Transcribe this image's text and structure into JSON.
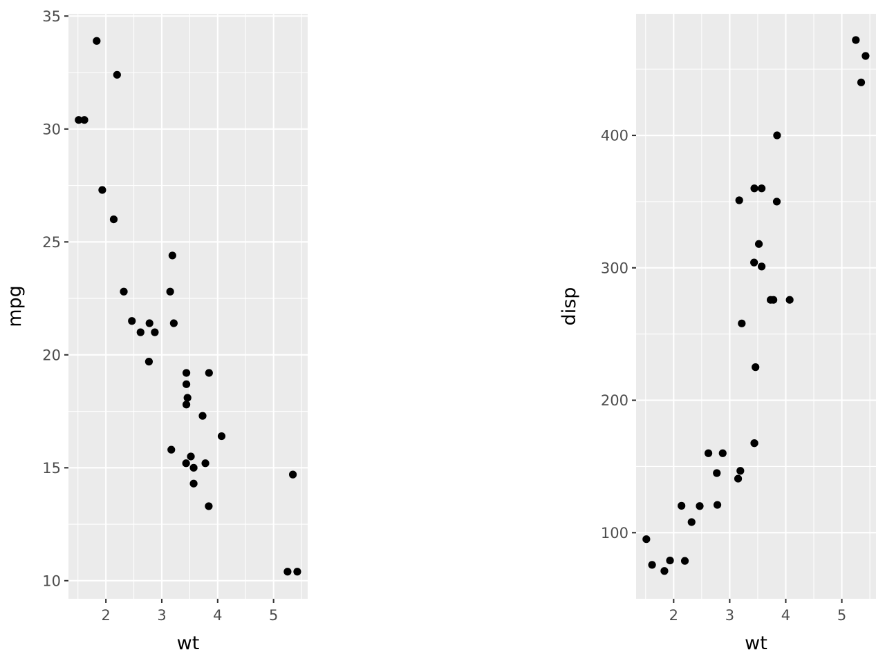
{
  "chart_data": [
    {
      "type": "scatter",
      "xlabel": "wt",
      "ylabel": "mpg",
      "xlim": [
        1.33,
        5.61
      ],
      "ylim": [
        9.2,
        35.1
      ],
      "x_ticks": [
        2,
        3,
        4,
        5
      ],
      "x_tick_labels": [
        "2",
        "3",
        "4",
        "5"
      ],
      "x_minor": [
        1.5,
        2.5,
        3.5,
        4.5,
        5.5
      ],
      "y_ticks": [
        10,
        15,
        20,
        25,
        30,
        35
      ],
      "y_tick_labels": [
        "10",
        "15",
        "20",
        "25",
        "30",
        "35"
      ],
      "y_minor": [
        12.5,
        17.5,
        22.5,
        27.5,
        32.5
      ],
      "grid": true,
      "points": [
        {
          "x": 2.62,
          "y": 21.0
        },
        {
          "x": 2.875,
          "y": 21.0
        },
        {
          "x": 2.32,
          "y": 22.8
        },
        {
          "x": 3.215,
          "y": 21.4
        },
        {
          "x": 3.44,
          "y": 18.7
        },
        {
          "x": 3.46,
          "y": 18.1
        },
        {
          "x": 3.57,
          "y": 14.3
        },
        {
          "x": 3.19,
          "y": 24.4
        },
        {
          "x": 3.15,
          "y": 22.8
        },
        {
          "x": 3.44,
          "y": 19.2
        },
        {
          "x": 3.44,
          "y": 17.8
        },
        {
          "x": 4.07,
          "y": 16.4
        },
        {
          "x": 3.73,
          "y": 17.3
        },
        {
          "x": 3.78,
          "y": 15.2
        },
        {
          "x": 5.25,
          "y": 10.4
        },
        {
          "x": 5.424,
          "y": 10.4
        },
        {
          "x": 5.345,
          "y": 14.7
        },
        {
          "x": 2.2,
          "y": 32.4
        },
        {
          "x": 1.615,
          "y": 30.4
        },
        {
          "x": 1.835,
          "y": 33.9
        },
        {
          "x": 2.465,
          "y": 21.5
        },
        {
          "x": 3.52,
          "y": 15.5
        },
        {
          "x": 3.435,
          "y": 15.2
        },
        {
          "x": 3.84,
          "y": 13.3
        },
        {
          "x": 3.845,
          "y": 19.2
        },
        {
          "x": 1.935,
          "y": 27.3
        },
        {
          "x": 2.14,
          "y": 26.0
        },
        {
          "x": 1.513,
          "y": 30.4
        },
        {
          "x": 3.17,
          "y": 15.8
        },
        {
          "x": 2.77,
          "y": 19.7
        },
        {
          "x": 3.57,
          "y": 15.0
        },
        {
          "x": 2.78,
          "y": 21.4
        }
      ]
    },
    {
      "type": "scatter",
      "xlabel": "wt",
      "ylabel": "disp",
      "xlim": [
        1.33,
        5.61
      ],
      "ylim": [
        50.1,
        491.8
      ],
      "x_ticks": [
        2,
        3,
        4,
        5
      ],
      "x_tick_labels": [
        "2",
        "3",
        "4",
        "5"
      ],
      "x_minor": [
        1.5,
        2.5,
        3.5,
        4.5,
        5.5
      ],
      "y_ticks": [
        100,
        200,
        300,
        400
      ],
      "y_tick_labels": [
        "100",
        "200",
        "300",
        "400"
      ],
      "y_minor": [
        50,
        150,
        250,
        350,
        450
      ],
      "grid": true,
      "points": [
        {
          "x": 2.62,
          "y": 160
        },
        {
          "x": 2.875,
          "y": 160
        },
        {
          "x": 2.32,
          "y": 108
        },
        {
          "x": 3.215,
          "y": 258
        },
        {
          "x": 3.44,
          "y": 360
        },
        {
          "x": 3.46,
          "y": 225
        },
        {
          "x": 3.57,
          "y": 360
        },
        {
          "x": 3.19,
          "y": 146.7
        },
        {
          "x": 3.15,
          "y": 140.8
        },
        {
          "x": 3.44,
          "y": 167.6
        },
        {
          "x": 3.44,
          "y": 167.6
        },
        {
          "x": 4.07,
          "y": 275.8
        },
        {
          "x": 3.73,
          "y": 275.8
        },
        {
          "x": 3.78,
          "y": 275.8
        },
        {
          "x": 5.25,
          "y": 472
        },
        {
          "x": 5.424,
          "y": 460
        },
        {
          "x": 5.345,
          "y": 440
        },
        {
          "x": 2.2,
          "y": 78.7
        },
        {
          "x": 1.615,
          "y": 75.7
        },
        {
          "x": 1.835,
          "y": 71.1
        },
        {
          "x": 2.465,
          "y": 120.1
        },
        {
          "x": 3.52,
          "y": 318
        },
        {
          "x": 3.435,
          "y": 304
        },
        {
          "x": 3.84,
          "y": 350
        },
        {
          "x": 3.845,
          "y": 400
        },
        {
          "x": 1.935,
          "y": 79
        },
        {
          "x": 2.14,
          "y": 120.3
        },
        {
          "x": 1.513,
          "y": 95.1
        },
        {
          "x": 3.17,
          "y": 351
        },
        {
          "x": 2.77,
          "y": 145
        },
        {
          "x": 3.57,
          "y": 301
        },
        {
          "x": 2.78,
          "y": 121
        }
      ]
    }
  ]
}
